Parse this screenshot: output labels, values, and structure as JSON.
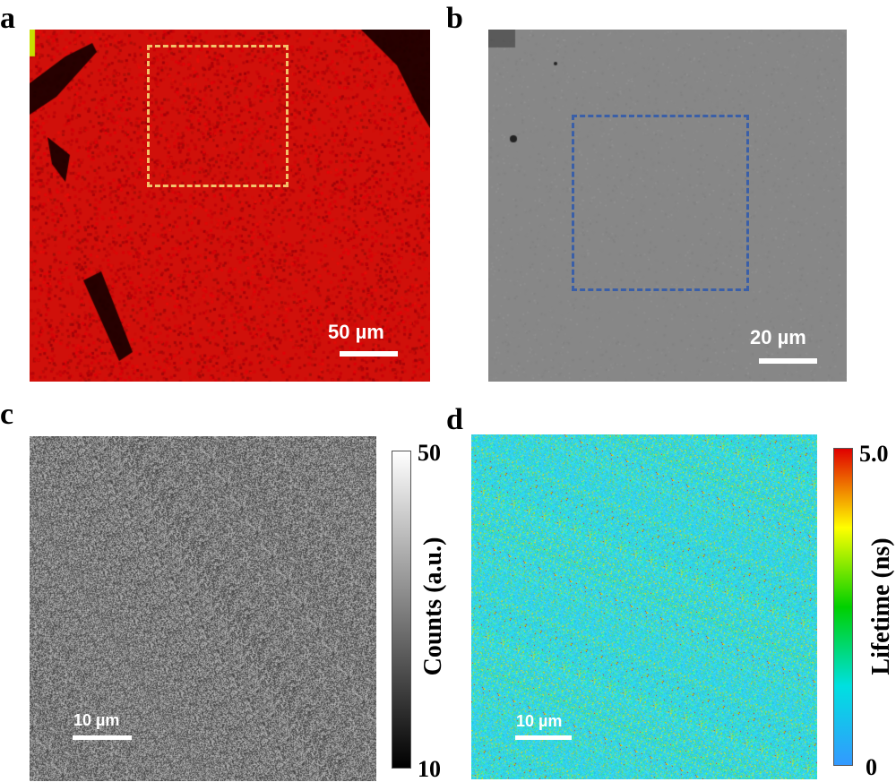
{
  "panels": {
    "a": {
      "letter": "a",
      "scale_label": "50 µm",
      "roi_color": "#f3c16a",
      "base_color": "#d40e08"
    },
    "b": {
      "letter": "b",
      "scale_label": "20 µm",
      "roi_color": "#3a5fa8",
      "base_color": "#868686"
    },
    "c": {
      "letter": "c",
      "scale_label": "10 µm",
      "colorbar": {
        "max_label": "50",
        "min_label": "10",
        "title": "Counts (a.u.)",
        "colors": [
          "#ffffff",
          "#000000"
        ]
      }
    },
    "d": {
      "letter": "d",
      "scale_label": "10 µm",
      "colorbar": {
        "max_label": "5.0",
        "min_label": "0",
        "title": "Lifetime (ns)",
        "colors": [
          "#e00000",
          "#ffff00",
          "#00d000",
          "#00e0e0",
          "#3399ff"
        ]
      }
    }
  }
}
